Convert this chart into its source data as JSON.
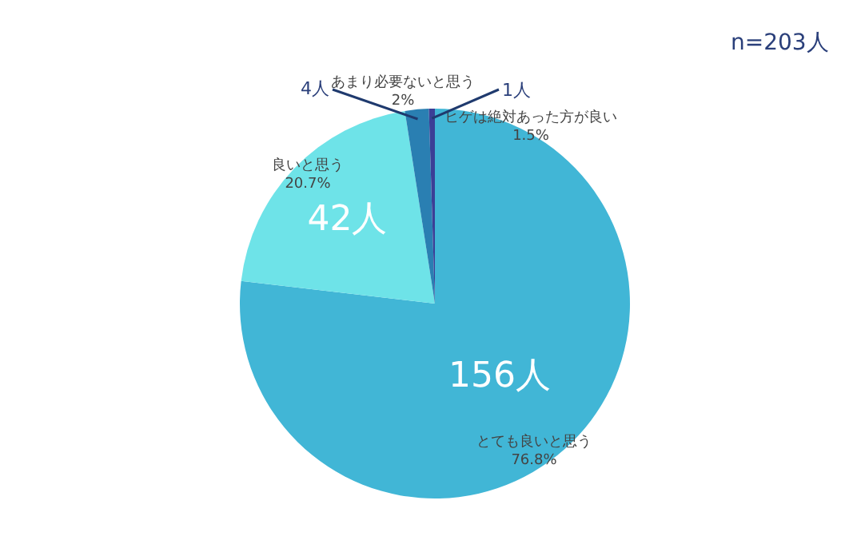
{
  "chart_data": {
    "type": "pie",
    "categories": [
      "とても良いと思う\n76.8%",
      "良いと思う\n20.7%",
      "あまり必要ないと思う\n2%",
      "ヒゲは絶対あった方が良い\n1.5%"
    ],
    "values": [
      156,
      42,
      4,
      1
    ],
    "value_labels": [
      "156人",
      "42人",
      "4人",
      "1人"
    ],
    "colors": [
      "#41b6d6",
      "#6ee3e8",
      "#2a7fb2",
      "#3b3f96"
    ],
    "annotations": [
      "n=203人"
    ],
    "legend": false
  }
}
